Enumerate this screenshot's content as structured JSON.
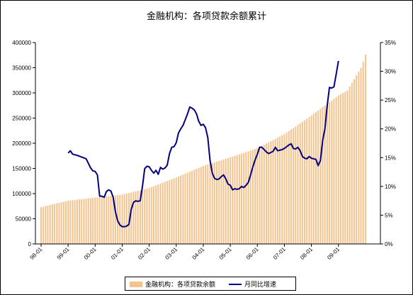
{
  "chart_data": {
    "type": "bar+line",
    "title": "金融机构：各项贷款余额累计",
    "legend_position": "bottom",
    "x_tick_labels": [
      "98-01",
      "99-01",
      "00-01",
      "01-01",
      "02-01",
      "03-01",
      "04-01",
      "05-01",
      "06-01",
      "07-01",
      "08-01",
      "09-01"
    ],
    "left_axis": {
      "ylim": [
        0,
        400000
      ],
      "ticks": [
        "0",
        "50000",
        "100000",
        "150000",
        "200000",
        "250000",
        "300000",
        "350000",
        "400000"
      ]
    },
    "right_axis": {
      "ylim": [
        0,
        35
      ],
      "ticks": [
        "0%",
        "5%",
        "10%",
        "15%",
        "20%",
        "25%",
        "30%",
        "35%"
      ]
    },
    "series": [
      {
        "name": "金融机构：各项贷款余额",
        "type": "bar",
        "axis": "left",
        "color": "#f5c28c",
        "points": [
          [
            0,
            73000
          ],
          [
            12,
            86000
          ],
          [
            24,
            92000
          ],
          [
            36,
            98000
          ],
          [
            48,
            111000
          ],
          [
            60,
            132000
          ],
          [
            72,
            155000
          ],
          [
            84,
            172000
          ],
          [
            96,
            190000
          ],
          [
            108,
            218000
          ],
          [
            120,
            255000
          ],
          [
            132,
            295000
          ],
          [
            136,
            305000
          ],
          [
            138,
            320000
          ],
          [
            140,
            335000
          ],
          [
            142,
            350000
          ],
          [
            143,
            362000
          ],
          [
            144,
            376000
          ]
        ]
      },
      {
        "name": "月同比增速",
        "type": "line",
        "axis": "right",
        "color": "#000080",
        "points": [
          [
            12,
            15.8
          ],
          [
            13,
            16.2
          ],
          [
            14,
            15.6
          ],
          [
            16,
            15.4
          ],
          [
            18,
            15.1
          ],
          [
            20,
            14.8
          ],
          [
            21,
            14
          ],
          [
            22,
            13.2
          ],
          [
            23,
            12.7
          ],
          [
            24,
            12.6
          ],
          [
            25,
            12
          ],
          [
            26,
            8.3
          ],
          [
            27,
            8.3
          ],
          [
            28,
            8.1
          ],
          [
            29,
            9.1
          ],
          [
            30,
            9.4
          ],
          [
            31,
            9.2
          ],
          [
            32,
            8.1
          ],
          [
            33,
            5.6
          ],
          [
            34,
            4
          ],
          [
            35,
            3.3
          ],
          [
            36,
            3
          ],
          [
            37,
            3
          ],
          [
            38,
            3.1
          ],
          [
            39,
            3.4
          ],
          [
            40,
            6
          ],
          [
            41,
            7.2
          ],
          [
            42,
            7.5
          ],
          [
            43,
            7.4
          ],
          [
            44,
            7.5
          ],
          [
            45,
            10
          ],
          [
            46,
            13.1
          ],
          [
            47,
            13.5
          ],
          [
            48,
            13.4
          ],
          [
            49,
            12.8
          ],
          [
            50,
            12.3
          ],
          [
            51,
            12.8
          ],
          [
            52,
            12.1
          ],
          [
            53,
            13.3
          ],
          [
            54,
            13
          ],
          [
            55,
            13.2
          ],
          [
            56,
            13.7
          ],
          [
            57,
            15.7
          ],
          [
            58,
            16.8
          ],
          [
            59,
            16.9
          ],
          [
            60,
            17.6
          ],
          [
            61,
            19.3
          ],
          [
            62,
            20
          ],
          [
            63,
            20.6
          ],
          [
            64,
            21.6
          ],
          [
            65,
            22.6
          ],
          [
            66,
            23.8
          ],
          [
            67,
            23.6
          ],
          [
            68,
            23.3
          ],
          [
            69,
            22.6
          ],
          [
            70,
            21.3
          ],
          [
            71,
            20.6
          ],
          [
            72,
            20.8
          ],
          [
            73,
            20.2
          ],
          [
            74,
            18.5
          ],
          [
            75,
            14.5
          ],
          [
            76,
            12.3
          ],
          [
            77,
            11.4
          ],
          [
            78,
            11.2
          ],
          [
            79,
            11.3
          ],
          [
            80,
            11.7
          ],
          [
            81,
            12
          ],
          [
            82,
            11.3
          ],
          [
            83,
            10.4
          ],
          [
            84,
            10.2
          ],
          [
            85,
            9.4
          ],
          [
            86,
            9.6
          ],
          [
            87,
            9.5
          ],
          [
            88,
            9.6
          ],
          [
            89,
            10
          ],
          [
            90,
            9.8
          ],
          [
            91,
            10.2
          ],
          [
            92,
            10.7
          ],
          [
            93,
            12
          ],
          [
            94,
            13.4
          ],
          [
            95,
            14.6
          ],
          [
            96,
            15.6
          ],
          [
            97,
            16.8
          ],
          [
            98,
            16.8
          ],
          [
            99,
            16.4
          ],
          [
            100,
            16
          ],
          [
            101,
            15.7
          ],
          [
            102,
            15.9
          ],
          [
            103,
            16.1
          ],
          [
            104,
            16.8
          ],
          [
            105,
            16.2
          ],
          [
            106,
            16.3
          ],
          [
            107,
            16.4
          ],
          [
            108,
            16.6
          ],
          [
            109,
            16.9
          ],
          [
            110,
            17.2
          ],
          [
            111,
            17.4
          ],
          [
            112,
            16.6
          ],
          [
            113,
            16.5
          ],
          [
            114,
            16.8
          ],
          [
            115,
            16.2
          ],
          [
            116,
            15.2
          ],
          [
            117,
            14.9
          ],
          [
            118,
            14.8
          ],
          [
            119,
            15.2
          ],
          [
            120,
            14.9
          ],
          [
            121,
            14.8
          ],
          [
            122,
            14.7
          ],
          [
            123,
            13.6
          ],
          [
            124,
            14.5
          ],
          [
            125,
            18
          ],
          [
            126,
            20
          ],
          [
            127,
            24
          ],
          [
            128,
            27.2
          ],
          [
            129,
            27.1
          ],
          [
            130,
            27.3
          ],
          [
            131,
            29.5
          ],
          [
            132,
            31.8
          ]
        ]
      }
    ]
  }
}
